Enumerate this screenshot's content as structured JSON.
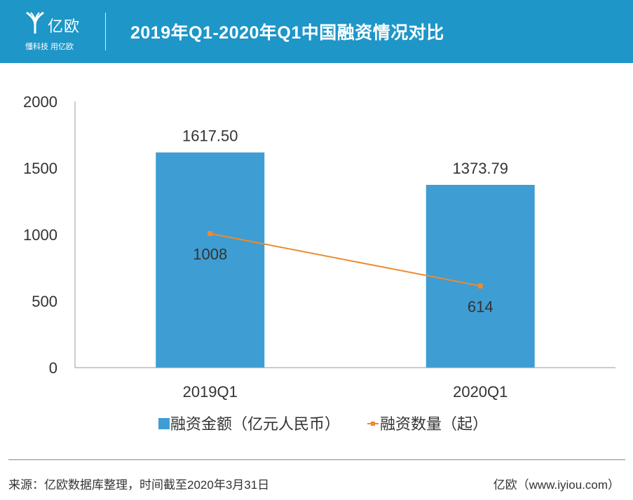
{
  "header": {
    "logo_name": "亿欧",
    "logo_slogan": "懂科技 用亿欧",
    "title": "2019年Q1-2020年Q1中国融资情况对比"
  },
  "colors": {
    "header_bg": "#1e96c8",
    "bar": "#3e9dd3",
    "line": "#ed8b2e",
    "axis": "#999999",
    "text": "#333333"
  },
  "chart_data": {
    "type": "bar+line",
    "title": "2019年Q1-2020年Q1中国融资情况对比",
    "categories": [
      "2019Q1",
      "2020Q1"
    ],
    "ylim": [
      0,
      2000
    ],
    "yticks": [
      0,
      500,
      1000,
      1500,
      2000
    ],
    "ytick_labels": [
      "0",
      "500",
      "1000",
      "1500",
      "2000"
    ],
    "grid": false,
    "series": [
      {
        "name": "融资金额（亿元人民币）",
        "type": "bar",
        "values": [
          1617.5,
          1373.79
        ],
        "labels": [
          "1617.50",
          "1373.79"
        ]
      },
      {
        "name": "融资数量（起）",
        "type": "line",
        "values": [
          1008,
          614
        ],
        "labels": [
          "1008",
          "614"
        ]
      }
    ],
    "legend_position": "bottom"
  },
  "footer": {
    "source": "来源：亿欧数据库整理，时间截至2020年3月31日",
    "brand": "亿欧（www.iyiou.com）"
  }
}
